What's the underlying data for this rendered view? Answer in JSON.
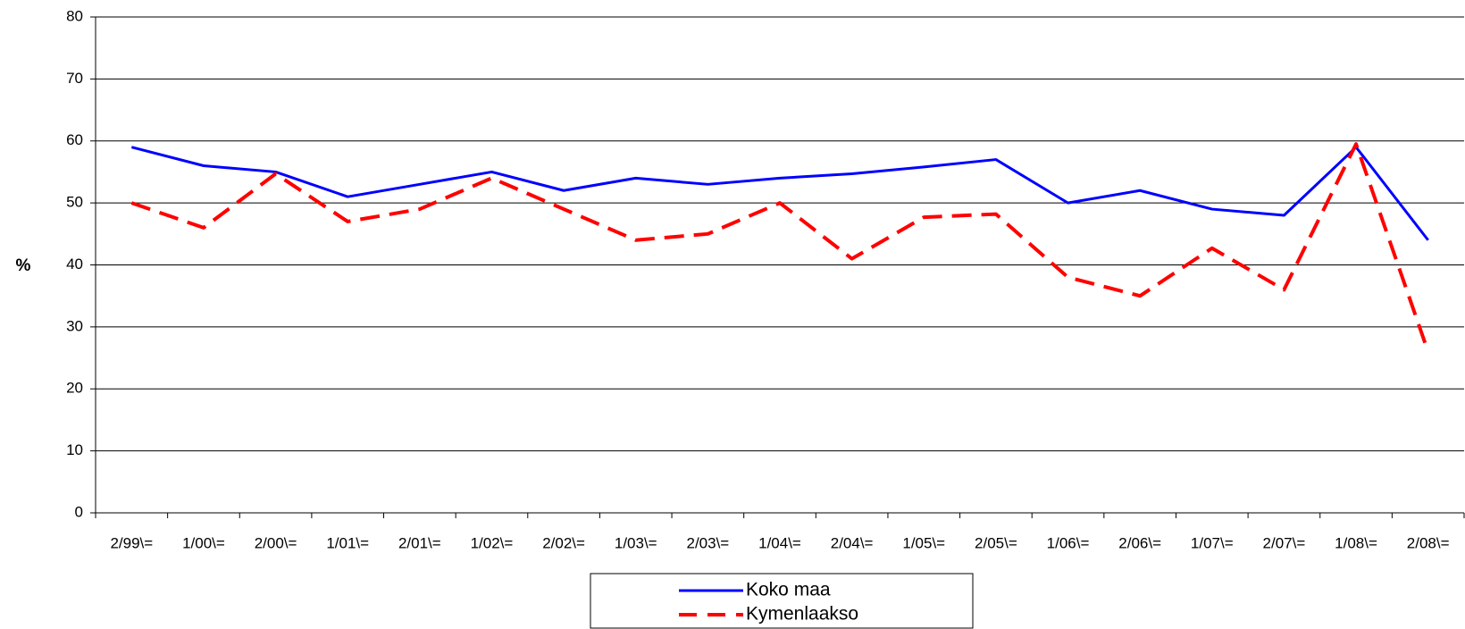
{
  "chart_data": {
    "type": "line",
    "y_label": "%",
    "categories": [
      "2/99\\=",
      "1/00\\=",
      "2/00\\=",
      "1/01\\=",
      "2/01\\=",
      "1/02\\=",
      "2/02\\=",
      "1/03\\=",
      "2/03\\=",
      "1/04\\=",
      "2/04\\=",
      "1/05\\=",
      "2/05\\=",
      "1/06\\=",
      "2/06\\=",
      "1/07\\=",
      "2/07\\=",
      "1/08\\=",
      "2/08\\="
    ],
    "series": [
      {
        "name": "Koko maa",
        "color": "#0000ff",
        "dashed": false,
        "values": [
          59,
          56,
          55,
          51,
          53,
          55,
          52,
          54,
          53,
          54,
          54.7,
          55.8,
          57,
          50,
          52,
          49,
          48,
          59,
          44
        ]
      },
      {
        "name": "Kymenlaakso",
        "color": "#ff0000",
        "dashed": true,
        "values": [
          50,
          46,
          54.7,
          47,
          49,
          54,
          49,
          44,
          45,
          50,
          41,
          47.7,
          48.2,
          38,
          35,
          42.7,
          36,
          59.5,
          26
        ]
      }
    ],
    "ylim": [
      0,
      80
    ],
    "yticks": [
      0,
      10,
      20,
      30,
      40,
      50,
      60,
      70,
      80
    ],
    "grid": true
  }
}
